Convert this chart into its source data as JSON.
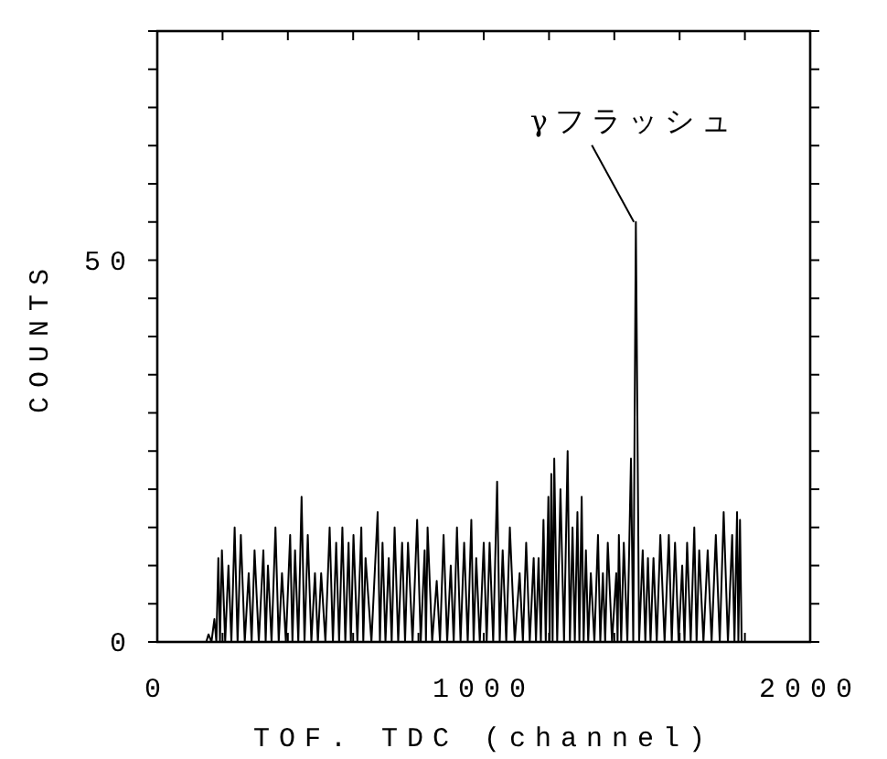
{
  "chart_data": {
    "type": "line",
    "xlabel": "TOF. TDC (channel)",
    "ylabel": "COUNTS",
    "annotations": [
      {
        "text": "γフラッシュ",
        "x": 1460,
        "y": 55
      }
    ],
    "xlim": [
      0,
      2000
    ],
    "ylim": [
      0,
      80
    ],
    "xticks": [
      0,
      {
        "value": 200,
        "label": null
      },
      {
        "value": 400,
        "label": null
      },
      {
        "value": 600,
        "label": null
      },
      {
        "value": 800,
        "label": null
      },
      1000,
      {
        "value": 1200,
        "label": null
      },
      {
        "value": 1400,
        "label": null
      },
      {
        "value": 1600,
        "label": null
      },
      {
        "value": 1800,
        "label": null
      },
      2000
    ],
    "yticks": [
      0,
      {
        "value": 5,
        "label": null
      },
      {
        "value": 10,
        "label": null
      },
      {
        "value": 15,
        "label": null
      },
      {
        "value": 20,
        "label": null
      },
      {
        "value": 25,
        "label": null
      },
      {
        "value": 30,
        "label": null
      },
      {
        "value": 35,
        "label": null
      },
      {
        "value": 40,
        "label": null
      },
      {
        "value": 45,
        "label": null
      },
      50,
      {
        "value": 55,
        "label": null
      },
      {
        "value": 60,
        "label": null
      },
      {
        "value": 65,
        "label": null
      },
      {
        "value": 70,
        "label": null
      },
      {
        "value": 75,
        "label": null
      },
      {
        "value": 80,
        "label": null
      }
    ],
    "grid": false,
    "marker": "none",
    "line_style": "solid",
    "series": [
      {
        "color": "#000000",
        "x": [
          0,
          150,
          157,
          166,
          175,
          181,
          187,
          192,
          198,
          208,
          218,
          227,
          237,
          246,
          256,
          268,
          280,
          289,
          298,
          311,
          325,
          332,
          339,
          350,
          362,
          372,
          382,
          394,
          407,
          414,
          422,
          432,
          442,
          451,
          461,
          472,
          483,
          492,
          502,
          515,
          528,
          538,
          548,
          557,
          567,
          576,
          586,
          593,
          601,
          613,
          625,
          631,
          638,
          656,
          675,
          682,
          690,
          699,
          709,
          718,
          727,
          738,
          750,
          759,
          768,
          782,
          796,
          807,
          819,
          823,
          828,
          842,
          856,
          866,
          877,
          888,
          899,
          908,
          918,
          929,
          940,
          951,
          962,
          969,
          977,
          988,
          1000,
          1009,
          1018,
          1029,
          1041,
          1049,
          1058,
          1069,
          1080,
          1095,
          1110,
          1120,
          1130,
          1141,
          1153,
          1160,
          1168,
          1175,
          1183,
          1190,
          1198,
          1202,
          1207,
          1211,
          1216,
          1225,
          1235,
          1246,
          1257,
          1264,
          1272,
          1279,
          1287,
          1293,
          1300,
          1306,
          1313,
          1320,
          1328,
          1339,
          1350,
          1357,
          1365,
          1372,
          1380,
          1393,
          1406,
          1410,
          1414,
          1421,
          1429,
          1440,
          1451,
          1458,
          1466,
          1476,
          1487,
          1495,
          1503,
          1511,
          1520,
          1530,
          1541,
          1554,
          1567,
          1576,
          1586,
          1597,
          1608,
          1615,
          1623,
          1634,
          1645,
          1652,
          1660,
          1673,
          1686,
          1698,
          1711,
          1723,
          1735,
          1748,
          1761,
          1768,
          1776,
          1780,
          1785,
          1790,
          2000
        ],
        "values": [
          0,
          0,
          1,
          0,
          3,
          0,
          11,
          0,
          12,
          0,
          10,
          0,
          15,
          0,
          14,
          0,
          9,
          0,
          12,
          0,
          12,
          0,
          10,
          0,
          15,
          0,
          9,
          0,
          14,
          0,
          12,
          0,
          19,
          0,
          14,
          0,
          9,
          0,
          9,
          0,
          15,
          0,
          13,
          0,
          15,
          0,
          13,
          0,
          14,
          0,
          15,
          0,
          11,
          0,
          17,
          0,
          13,
          0,
          11,
          0,
          15,
          0,
          13,
          0,
          13,
          0,
          16,
          0,
          12,
          0,
          15,
          0,
          8,
          0,
          14,
          0,
          10,
          0,
          15,
          0,
          13,
          0,
          16,
          0,
          11,
          0,
          13,
          0,
          13,
          0,
          21,
          0,
          12,
          0,
          15,
          0,
          9,
          0,
          13,
          0,
          11,
          0,
          11,
          0,
          16,
          0,
          19,
          0,
          22,
          0,
          24,
          0,
          20,
          0,
          25,
          0,
          15,
          0,
          17,
          0,
          19,
          0,
          12,
          0,
          9,
          0,
          14,
          0,
          9,
          0,
          13,
          0,
          9,
          0,
          14,
          0,
          13,
          0,
          24,
          0,
          55,
          0,
          12,
          0,
          11,
          0,
          11,
          0,
          14,
          0,
          14,
          0,
          13,
          0,
          10,
          0,
          13,
          0,
          15,
          0,
          12,
          0,
          12,
          0,
          14,
          0,
          17,
          0,
          14,
          0,
          17,
          0,
          16,
          0,
          0
        ]
      }
    ]
  }
}
